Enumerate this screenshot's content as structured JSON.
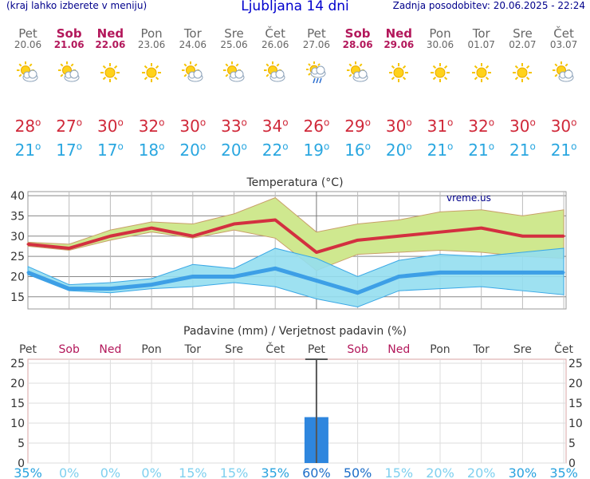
{
  "header": {
    "left_note": "(kraj lahko izberete v meniju)",
    "title": "Ljubljana 14 dni",
    "updated": "Zadnja posodobitev: 20.06.2025 - 22:24"
  },
  "days": [
    {
      "name": "Pet",
      "date": "20.06",
      "weekend": false,
      "icon": "sun-cloud-icon",
      "tmax": "28",
      "tmin": "21"
    },
    {
      "name": "Sob",
      "date": "21.06",
      "weekend": true,
      "icon": "sun-cloud-icon",
      "tmax": "27",
      "tmin": "17"
    },
    {
      "name": "Ned",
      "date": "22.06",
      "weekend": true,
      "icon": "sun-icon",
      "tmax": "30",
      "tmin": "17"
    },
    {
      "name": "Pon",
      "date": "23.06",
      "weekend": false,
      "icon": "sun-icon",
      "tmax": "32",
      "tmin": "18"
    },
    {
      "name": "Tor",
      "date": "24.06",
      "weekend": false,
      "icon": "sun-cloud-icon",
      "tmax": "30",
      "tmin": "20"
    },
    {
      "name": "Sre",
      "date": "25.06",
      "weekend": false,
      "icon": "sun-cloud-icon",
      "tmax": "33",
      "tmin": "20"
    },
    {
      "name": "Čet",
      "date": "26.06",
      "weekend": false,
      "icon": "sun-cloud-icon",
      "tmax": "34",
      "tmin": "22"
    },
    {
      "name": "Pet",
      "date": "27.06",
      "weekend": false,
      "icon": "sun-rain-icon",
      "tmax": "26",
      "tmin": "19"
    },
    {
      "name": "Sob",
      "date": "28.06",
      "weekend": true,
      "icon": "sun-cloud-icon",
      "tmax": "29",
      "tmin": "16"
    },
    {
      "name": "Ned",
      "date": "29.06",
      "weekend": true,
      "icon": "sun-icon",
      "tmax": "30",
      "tmin": "20"
    },
    {
      "name": "Pon",
      "date": "30.06",
      "weekend": false,
      "icon": "sun-icon",
      "tmax": "31",
      "tmin": "21"
    },
    {
      "name": "Tor",
      "date": "01.07",
      "weekend": false,
      "icon": "sun-icon",
      "tmax": "32",
      "tmin": "21"
    },
    {
      "name": "Sre",
      "date": "02.07",
      "weekend": false,
      "icon": "sun-icon",
      "tmax": "30",
      "tmin": "21"
    },
    {
      "name": "Čet",
      "date": "03.07",
      "weekend": false,
      "icon": "sun-cloud-icon",
      "tmax": "30",
      "tmin": "21"
    }
  ],
  "colors": {
    "tmax": "#d0293a",
    "tmin": "#2aa7e0",
    "precip": "#2e86de",
    "weekend": "#b3185b"
  },
  "chart_data": [
    {
      "type": "line",
      "title": "Temperatura (°C)",
      "watermark": "vreme.us",
      "ylim": [
        12,
        41
      ],
      "yticks": [
        15,
        20,
        25,
        30,
        35,
        40
      ],
      "series": [
        {
          "name": "max",
          "values": [
            28,
            27,
            30,
            32,
            30,
            33,
            34,
            26,
            29,
            30,
            31,
            32,
            30,
            30
          ],
          "band_low": [
            27.5,
            26.5,
            29,
            31,
            29.5,
            31.5,
            29.5,
            21.5,
            25.5,
            26,
            26.5,
            26,
            25,
            24.5
          ],
          "band_high": [
            28.5,
            28,
            31.5,
            33.5,
            33,
            35.5,
            39.5,
            31,
            33,
            34,
            36,
            36.5,
            35,
            36.5
          ]
        },
        {
          "name": "min",
          "values": [
            21,
            17,
            17,
            18,
            20,
            20,
            22,
            19,
            16,
            20,
            21,
            21,
            21,
            21
          ],
          "band_low": [
            20.5,
            16.5,
            16,
            17,
            17.5,
            18.5,
            17.5,
            14.5,
            12.5,
            16.5,
            17,
            17.5,
            16.5,
            15.5
          ],
          "band_high": [
            22.5,
            18,
            18.5,
            19.5,
            23,
            22,
            27,
            24.5,
            20,
            24,
            25.5,
            25,
            26,
            27
          ]
        }
      ]
    },
    {
      "type": "bar",
      "title": "Padavine (mm) / Verjetnost padavin (%)",
      "categories": [
        "Pet",
        "Sob",
        "Ned",
        "Pon",
        "Tor",
        "Sre",
        "Čet",
        "Pet",
        "Sob",
        "Ned",
        "Pon",
        "Tor",
        "Sre",
        "Čet"
      ],
      "weekend": [
        false,
        true,
        true,
        false,
        false,
        false,
        false,
        false,
        true,
        true,
        false,
        false,
        false,
        false
      ],
      "ylim": [
        0,
        26
      ],
      "yticks": [
        0,
        5,
        10,
        15,
        20,
        25
      ],
      "values": [
        0,
        0,
        0,
        0,
        0,
        0,
        0,
        11.5,
        0,
        0,
        0,
        0,
        0,
        0
      ],
      "max_values": [
        0,
        0,
        0,
        0,
        0,
        0,
        0,
        26,
        0,
        0,
        0,
        0,
        0,
        0
      ],
      "probability": [
        "35%",
        "0%",
        "0%",
        "0%",
        "15%",
        "15%",
        "35%",
        "60%",
        "50%",
        "15%",
        "20%",
        "20%",
        "30%",
        "35%"
      ],
      "probability_colors": [
        "#29a3df",
        "#7fd0ef",
        "#7fd0ef",
        "#7fd0ef",
        "#7fd0ef",
        "#7fd0ef",
        "#29a3df",
        "#1e6fc9",
        "#1e6fc9",
        "#7fd0ef",
        "#7fd0ef",
        "#7fd0ef",
        "#29a3df",
        "#29a3df"
      ]
    }
  ]
}
